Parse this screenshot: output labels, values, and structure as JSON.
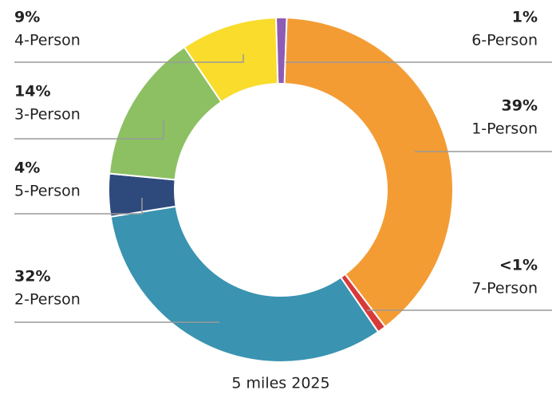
{
  "chart_data": {
    "type": "donut",
    "subtitle": "5 miles 2025",
    "categories": [
      "6-Person",
      "1-Person",
      "7-Person",
      "2-Person",
      "5-Person",
      "3-Person",
      "4-Person"
    ],
    "values": [
      1,
      39,
      0.8,
      32,
      4,
      14,
      9
    ],
    "value_labels": [
      "1%",
      "39%",
      "<1%",
      "32%",
      "4%",
      "14%",
      "9%"
    ],
    "colors": [
      "#8e5bb5",
      "#f39c34",
      "#d83a3a",
      "#3a93b0",
      "#2e4a7d",
      "#8cc063",
      "#f9dc2c"
    ]
  }
}
